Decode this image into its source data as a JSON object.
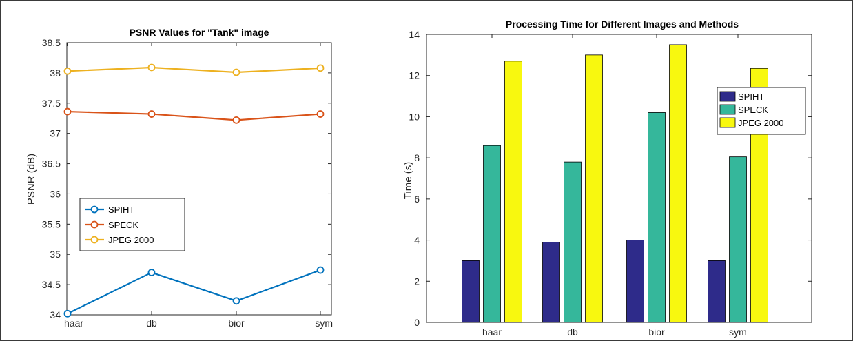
{
  "chart_data": [
    {
      "type": "line",
      "title": "PSNR Values for \"Tank\" image",
      "xlabel": "",
      "ylabel": "PSNR (dB)",
      "categories": [
        "haar",
        "db",
        "bior",
        "sym"
      ],
      "ylim": [
        34,
        38.5
      ],
      "yticks": [
        34,
        34.5,
        35,
        35.5,
        36,
        36.5,
        37,
        37.5,
        38,
        38.5
      ],
      "ytick_labels": [
        "34",
        "34.5",
        "35",
        "35.5",
        "36",
        "36.5",
        "37",
        "37.5",
        "38",
        "38.5"
      ],
      "grid": false,
      "legend_position": "center-left",
      "series": [
        {
          "name": "SPIHT",
          "values": [
            34.02,
            34.7,
            34.23,
            34.74
          ],
          "color": "#0072BD"
        },
        {
          "name": "SPECK",
          "values": [
            37.36,
            37.32,
            37.22,
            37.32
          ],
          "color": "#D95319"
        },
        {
          "name": "JPEG 2000",
          "values": [
            38.03,
            38.09,
            38.01,
            38.08
          ],
          "color": "#EDB120"
        }
      ]
    },
    {
      "type": "bar",
      "title": "Processing Time for Different Images and Methods",
      "xlabel": "",
      "ylabel": "Time (s)",
      "categories": [
        "haar",
        "db",
        "bior",
        "sym"
      ],
      "ylim": [
        0,
        14
      ],
      "yticks": [
        0,
        2,
        4,
        6,
        8,
        10,
        12,
        14
      ],
      "ytick_labels": [
        "0",
        "2",
        "4",
        "6",
        "8",
        "10",
        "12",
        "14"
      ],
      "grid": false,
      "legend_position": "top-right",
      "series": [
        {
          "name": "SPIHT",
          "values": [
            3.0,
            3.9,
            4.0,
            3.0
          ],
          "color": "#2E2B8A"
        },
        {
          "name": "SPECK",
          "values": [
            8.6,
            7.8,
            10.2,
            8.05
          ],
          "color": "#35B79B"
        },
        {
          "name": "JPEG 2000",
          "values": [
            12.7,
            13.0,
            13.5,
            12.35
          ],
          "color": "#F8F80F"
        }
      ]
    }
  ]
}
